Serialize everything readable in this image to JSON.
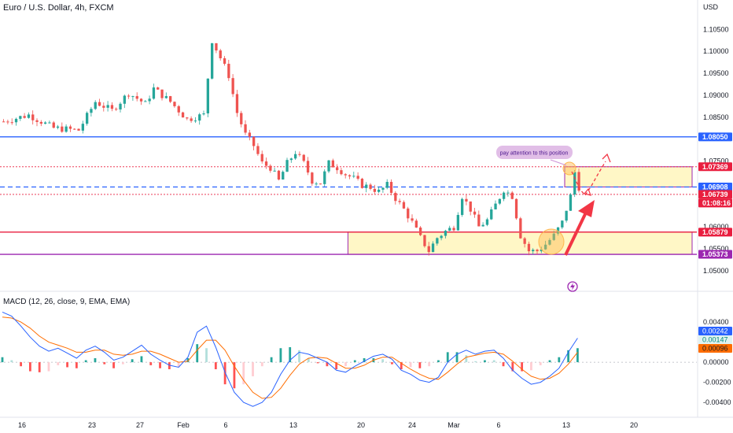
{
  "header": {
    "title": "Euro / U.S. Dollar, 4h, FXCM",
    "currency": "USD",
    "macd_title": "MACD (12, 26, close, 9, EMA, EMA)"
  },
  "annotation": {
    "callout": "pay attention to this position"
  },
  "colors": {
    "up": "#26a69a",
    "down": "#ef5350",
    "blue_line": "#2962ff",
    "red_line": "#e91e3f",
    "purple_line": "#9c27b0",
    "zone_fill": "#fff7c6",
    "callout": "#e1bee7",
    "arrow": "#f23645",
    "macd_line": "#2962ff",
    "signal_line": "#ff6d00"
  },
  "chart_data": [
    {
      "type": "candlestick",
      "title": "Euro / U.S. Dollar, 4h, FXCM",
      "ylim": [
        1.048,
        1.1072
      ],
      "y_ticks": [
        "1.10500",
        "1.10000",
        "1.09500",
        "1.09000",
        "1.08500",
        "1.08050",
        "1.07500",
        "1.07369",
        "1.06908",
        "1.06739",
        "1.06000",
        "1.05879",
        "1.05500",
        "1.05373",
        "1.05000"
      ],
      "x_tick_labels": [
        "16",
        "23",
        "27",
        "Feb",
        "6",
        "13",
        "20",
        "24",
        "Mar",
        "6",
        "13",
        "20"
      ],
      "close_path": [
        [
          0,
          1.084
        ],
        [
          6,
          1.0855
        ],
        [
          12,
          1.0825
        ],
        [
          18,
          1.082
        ],
        [
          22,
          1.0885
        ],
        [
          26,
          1.0865
        ],
        [
          30,
          1.0905
        ],
        [
          34,
          1.088
        ],
        [
          36,
          1.0915
        ],
        [
          40,
          1.0885
        ],
        [
          44,
          1.0845
        ],
        [
          48,
          1.0855
        ],
        [
          50,
          1.1025
        ],
        [
          52,
          1.0985
        ],
        [
          54,
          1.0945
        ],
        [
          56,
          1.086
        ],
        [
          58,
          1.081
        ],
        [
          60,
          1.0785
        ],
        [
          62,
          1.0745
        ],
        [
          64,
          1.0735
        ],
        [
          66,
          1.0705
        ],
        [
          68,
          1.0745
        ],
        [
          70,
          1.077
        ],
        [
          72,
          1.0745
        ],
        [
          74,
          1.0705
        ],
        [
          76,
          1.07
        ],
        [
          78,
          1.0745
        ],
        [
          80,
          1.0735
        ],
        [
          82,
          1.072
        ],
        [
          84,
          1.071
        ],
        [
          86,
          1.0695
        ],
        [
          88,
          1.069
        ],
        [
          90,
          1.068
        ],
        [
          92,
          1.0695
        ],
        [
          94,
          1.0665
        ],
        [
          96,
          1.064
        ],
        [
          98,
          1.061
        ],
        [
          100,
          1.0575
        ],
        [
          102,
          1.0545
        ],
        [
          104,
          1.0575
        ],
        [
          106,
          1.059
        ],
        [
          108,
          1.06
        ],
        [
          110,
          1.067
        ],
        [
          112,
          1.064
        ],
        [
          114,
          1.06
        ],
        [
          116,
          1.0615
        ],
        [
          118,
          1.065
        ],
        [
          120,
          1.0685
        ],
        [
          122,
          1.067
        ],
        [
          124,
          1.058
        ],
        [
          126,
          1.0545
        ],
        [
          128,
          1.0545
        ],
        [
          130,
          1.056
        ],
        [
          132,
          1.058
        ],
        [
          134,
          1.061
        ],
        [
          136,
          1.067
        ],
        [
          137,
          1.0725
        ],
        [
          138,
          1.069
        ]
      ],
      "zones": [
        {
          "low": 1.06908,
          "high": 1.07369,
          "x_from": 135,
          "x_to": 160
        },
        {
          "low": 1.05373,
          "high": 1.05879,
          "x_from": 83,
          "x_to": 160
        }
      ],
      "horizontal_lines": [
        {
          "value": 1.0805,
          "label": "1.08050",
          "style": "solid",
          "color": "blue"
        },
        {
          "value": 1.07369,
          "label": "1.07369",
          "style": "dotted",
          "color": "red"
        },
        {
          "value": 1.06908,
          "label": "1.06908",
          "style": "dashed",
          "color": "blue"
        },
        {
          "value": 1.06739,
          "label": "1.06739",
          "style": "dotted",
          "color": "red",
          "timer": "01:08:16"
        },
        {
          "value": 1.05879,
          "label": "1.05879",
          "style": "solid",
          "color": "red"
        },
        {
          "value": 1.05373,
          "label": "1.05373",
          "style": "solid",
          "color": "purple"
        }
      ]
    },
    {
      "type": "macd",
      "title": "MACD (12, 26, close, 9, EMA, EMA)",
      "ylim": [
        -0.0047,
        0.0055
      ],
      "y_ticks": [
        "0.00400",
        "0.00200",
        "0.00000",
        "-0.00200",
        "-0.00400"
      ],
      "value_labels": [
        "0.00242",
        "0.00147",
        "0.00096"
      ],
      "macd": [
        0.005,
        0.0046,
        0.0036,
        0.0025,
        0.0016,
        0.0011,
        0.0014,
        0.0009,
        0.0004,
        0.0012,
        0.0016,
        0.001,
        0.0002,
        0.0005,
        0.0011,
        0.0017,
        0.0008,
        0.0002,
        -0.0003,
        -0.0005,
        0.0005,
        0.003,
        0.0036,
        0.0015,
        -0.001,
        -0.003,
        -0.004,
        -0.0044,
        -0.004,
        -0.003,
        -0.0012,
        0.0002,
        0.001,
        0.0008,
        0.0004,
        0.0,
        -0.0008,
        -0.001,
        -0.0004,
        0.0001,
        0.0006,
        0.0008,
        0.0003,
        -0.0008,
        -0.0012,
        -0.0018,
        -0.002,
        -0.0015,
        0.0,
        0.0008,
        0.0012,
        0.0008,
        0.0011,
        0.0012,
        0.0004,
        -0.0008,
        -0.0016,
        -0.0022,
        -0.002,
        -0.0014,
        -0.0006,
        0.001,
        0.0024
      ],
      "signal": [
        0.0045,
        0.0044,
        0.004,
        0.0034,
        0.0026,
        0.002,
        0.0017,
        0.0014,
        0.001,
        0.001,
        0.0012,
        0.0012,
        0.0008,
        0.0007,
        0.0008,
        0.0011,
        0.0011,
        0.0008,
        0.0004,
        0.0,
        0.0001,
        0.0012,
        0.0022,
        0.0022,
        0.0012,
        -0.0004,
        -0.0018,
        -0.003,
        -0.0036,
        -0.0035,
        -0.0026,
        -0.0013,
        -0.0002,
        0.0004,
        0.0005,
        0.0004,
        -0.0001,
        -0.0006,
        -0.0006,
        -0.0003,
        0.0002,
        0.0005,
        0.0005,
        -0.0001,
        -0.0007,
        -0.0012,
        -0.0016,
        -0.0017,
        -0.001,
        -0.0002,
        0.0005,
        0.0007,
        0.0009,
        0.001,
        0.0008,
        0.0001,
        -0.0007,
        -0.0014,
        -0.0017,
        -0.0016,
        -0.0011,
        -0.0002,
        0.001
      ]
    }
  ]
}
